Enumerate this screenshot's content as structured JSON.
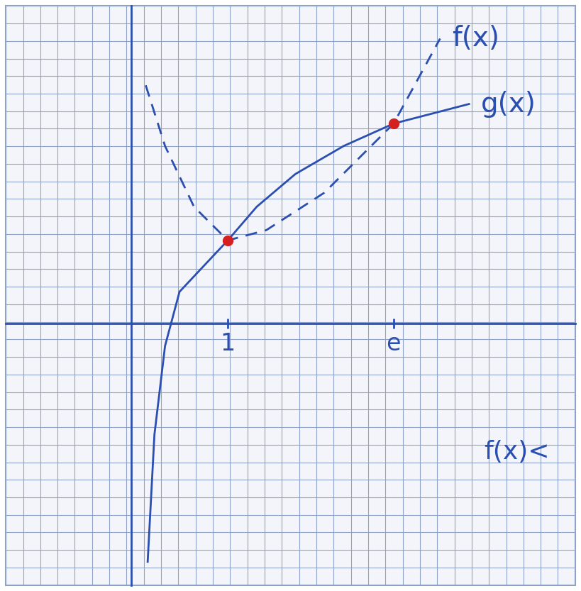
{
  "chart_data": {
    "type": "line",
    "xlim": [
      -1.3,
      4.6
    ],
    "ylim": [
      -2.8,
      3.4
    ],
    "xticks": [
      {
        "value": 1,
        "label": "1"
      },
      {
        "value": 2.718,
        "label": "e"
      }
    ],
    "yticks": [],
    "tick_labels": "x",
    "series": [
      {
        "name": "f(x)",
        "color": "#2a4fb0",
        "line_style": "dashed",
        "x": [
          0.15,
          0.35,
          0.65,
          1,
          1.4,
          2.0,
          2.718,
          3.2
        ],
        "values": [
          2.55,
          1.9,
          1.25,
          0.89,
          1.0,
          1.4,
          2.14,
          3.05
        ]
      },
      {
        "name": "g(x)",
        "color": "#2a4fb0",
        "line_style": "solid",
        "x": [
          0.17,
          0.24,
          0.35,
          0.5,
          1,
          1.3,
          1.7,
          2.2,
          2.718,
          3.5
        ],
        "values": [
          -2.55,
          -1.19,
          -0.24,
          0.34,
          0.89,
          1.25,
          1.6,
          1.9,
          2.14,
          2.35
        ]
      }
    ],
    "annotations": [
      "f(x)<"
    ]
  }
}
